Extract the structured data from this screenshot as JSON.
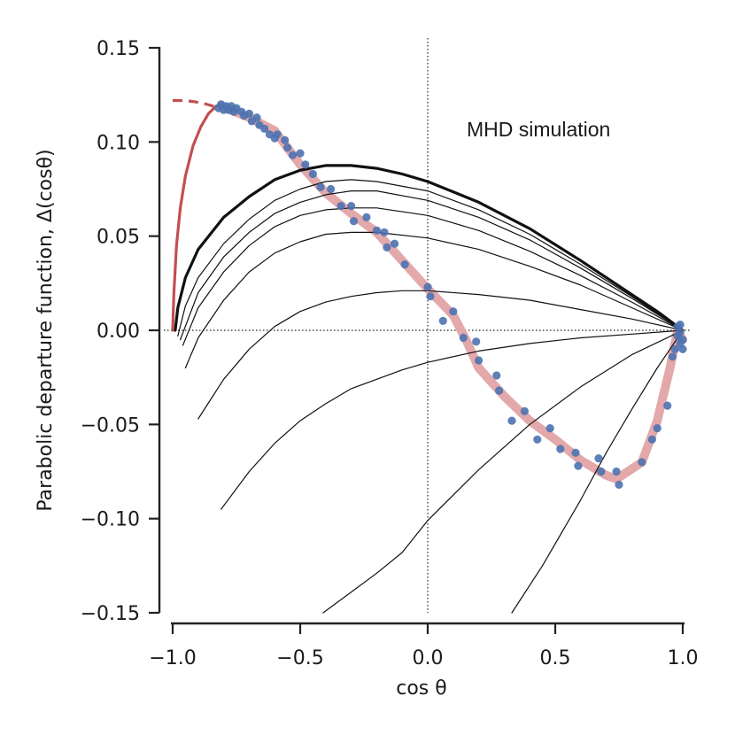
{
  "chart_data": {
    "type": "line",
    "xlabel": "cos θ",
    "ylabel": "Parabolic departure function, Δ(cosθ)",
    "xlim": [
      -1.0,
      1.0
    ],
    "ylim": [
      -0.15,
      0.15
    ],
    "xticks": [
      -1.0,
      -0.5,
      0.0,
      0.5,
      1.0
    ],
    "xtick_labels": [
      "−1.0",
      "−0.5",
      "0.0",
      "0.5",
      "1.0"
    ],
    "yticks": [
      -0.15,
      -0.1,
      -0.05,
      0.0,
      0.05,
      0.1,
      0.15
    ],
    "ytick_labels": [
      "−0.15",
      "−0.10",
      "−0.05",
      "0.00",
      "0.05",
      "0.10",
      "0.15"
    ],
    "annotation": "MHD simulation",
    "colors": {
      "model_curve": "#c44e52",
      "sim_band": "#e3a8aa",
      "sim_points": "#4c72b0",
      "family": "#111111"
    },
    "series": [
      {
        "name": "family-curve-thick",
        "style": "thick",
        "points": [
          [
            -0.99,
            0.0
          ],
          [
            -0.98,
            0.012
          ],
          [
            -0.95,
            0.028
          ],
          [
            -0.9,
            0.043
          ],
          [
            -0.8,
            0.06
          ],
          [
            -0.7,
            0.071
          ],
          [
            -0.6,
            0.08
          ],
          [
            -0.5,
            0.085
          ],
          [
            -0.4,
            0.0875
          ],
          [
            -0.3,
            0.0875
          ],
          [
            -0.2,
            0.086
          ],
          [
            -0.1,
            0.083
          ],
          [
            0.0,
            0.079
          ],
          [
            0.2,
            0.068
          ],
          [
            0.4,
            0.054
          ],
          [
            0.6,
            0.037
          ],
          [
            0.8,
            0.019
          ],
          [
            0.9,
            0.01
          ],
          [
            1.0,
            0.0
          ]
        ]
      },
      {
        "name": "family-curve-2",
        "points": [
          [
            -0.98,
            -0.003
          ],
          [
            -0.95,
            0.013
          ],
          [
            -0.9,
            0.028
          ],
          [
            -0.8,
            0.046
          ],
          [
            -0.7,
            0.059
          ],
          [
            -0.6,
            0.069
          ],
          [
            -0.5,
            0.075
          ],
          [
            -0.4,
            0.079
          ],
          [
            -0.3,
            0.08
          ],
          [
            -0.2,
            0.079
          ],
          [
            0.0,
            0.074
          ],
          [
            0.2,
            0.064
          ],
          [
            0.4,
            0.051
          ],
          [
            0.6,
            0.035
          ],
          [
            0.8,
            0.018
          ],
          [
            1.0,
            0.0
          ]
        ]
      },
      {
        "name": "family-curve-3",
        "points": [
          [
            -0.97,
            -0.005
          ],
          [
            -0.9,
            0.02
          ],
          [
            -0.8,
            0.039
          ],
          [
            -0.7,
            0.052
          ],
          [
            -0.6,
            0.062
          ],
          [
            -0.5,
            0.068
          ],
          [
            -0.4,
            0.072
          ],
          [
            -0.3,
            0.074
          ],
          [
            -0.2,
            0.074
          ],
          [
            0.0,
            0.069
          ],
          [
            0.2,
            0.06
          ],
          [
            0.4,
            0.048
          ],
          [
            0.6,
            0.033
          ],
          [
            0.8,
            0.017
          ],
          [
            1.0,
            0.0
          ]
        ]
      },
      {
        "name": "family-curve-4",
        "points": [
          [
            -0.96,
            -0.008
          ],
          [
            -0.9,
            0.012
          ],
          [
            -0.8,
            0.031
          ],
          [
            -0.7,
            0.045
          ],
          [
            -0.6,
            0.055
          ],
          [
            -0.5,
            0.061
          ],
          [
            -0.4,
            0.064
          ],
          [
            -0.3,
            0.065
          ],
          [
            -0.2,
            0.065
          ],
          [
            0.0,
            0.061
          ],
          [
            0.2,
            0.053
          ],
          [
            0.4,
            0.042
          ],
          [
            0.6,
            0.029
          ],
          [
            0.8,
            0.015
          ],
          [
            1.0,
            0.0
          ]
        ]
      },
      {
        "name": "family-curve-5",
        "points": [
          [
            -0.95,
            -0.02
          ],
          [
            -0.9,
            -0.004
          ],
          [
            -0.8,
            0.016
          ],
          [
            -0.7,
            0.031
          ],
          [
            -0.6,
            0.041
          ],
          [
            -0.5,
            0.047
          ],
          [
            -0.4,
            0.051
          ],
          [
            -0.3,
            0.052
          ],
          [
            -0.2,
            0.052
          ],
          [
            0.0,
            0.049
          ],
          [
            0.2,
            0.043
          ],
          [
            0.4,
            0.034
          ],
          [
            0.6,
            0.024
          ],
          [
            0.8,
            0.012
          ],
          [
            1.0,
            0.0
          ]
        ]
      },
      {
        "name": "family-curve-6",
        "points": [
          [
            -0.9,
            -0.047
          ],
          [
            -0.8,
            -0.026
          ],
          [
            -0.7,
            -0.01
          ],
          [
            -0.6,
            0.002
          ],
          [
            -0.5,
            0.01
          ],
          [
            -0.4,
            0.015
          ],
          [
            -0.3,
            0.018
          ],
          [
            -0.2,
            0.02
          ],
          [
            -0.1,
            0.021
          ],
          [
            0.0,
            0.021
          ],
          [
            0.2,
            0.019
          ],
          [
            0.4,
            0.016
          ],
          [
            0.6,
            0.011
          ],
          [
            0.8,
            0.006
          ],
          [
            1.0,
            0.0
          ]
        ]
      },
      {
        "name": "family-curve-7",
        "points": [
          [
            -0.81,
            -0.095
          ],
          [
            -0.7,
            -0.075
          ],
          [
            -0.6,
            -0.06
          ],
          [
            -0.5,
            -0.048
          ],
          [
            -0.4,
            -0.039
          ],
          [
            -0.3,
            -0.031
          ],
          [
            -0.2,
            -0.026
          ],
          [
            -0.1,
            -0.021
          ],
          [
            0.0,
            -0.017
          ],
          [
            0.2,
            -0.011
          ],
          [
            0.4,
            -0.007
          ],
          [
            0.6,
            -0.004
          ],
          [
            0.8,
            -0.002
          ],
          [
            1.0,
            0.0
          ]
        ]
      },
      {
        "name": "family-curve-8",
        "points": [
          [
            -0.41,
            -0.15
          ],
          [
            -0.3,
            -0.139
          ],
          [
            -0.2,
            -0.129
          ],
          [
            -0.1,
            -0.118
          ],
          [
            0.0,
            -0.101
          ],
          [
            0.2,
            -0.074
          ],
          [
            0.4,
            -0.05
          ],
          [
            0.6,
            -0.03
          ],
          [
            0.8,
            -0.013
          ],
          [
            1.0,
            0.0
          ]
        ]
      },
      {
        "name": "family-curve-9",
        "points": [
          [
            0.33,
            -0.15
          ],
          [
            0.45,
            -0.125
          ],
          [
            0.6,
            -0.09
          ],
          [
            0.7,
            -0.065
          ],
          [
            0.8,
            -0.042
          ],
          [
            0.9,
            -0.02
          ],
          [
            1.0,
            0.0
          ]
        ]
      },
      {
        "name": "model-solid",
        "style": "red-solid",
        "points": [
          [
            -1.0,
            0.0
          ],
          [
            -0.995,
            0.02
          ],
          [
            -0.985,
            0.045
          ],
          [
            -0.97,
            0.065
          ],
          [
            -0.95,
            0.082
          ],
          [
            -0.92,
            0.098
          ],
          [
            -0.89,
            0.108
          ],
          [
            -0.86,
            0.115
          ],
          [
            -0.83,
            0.119
          ],
          [
            -0.81,
            0.12
          ]
        ]
      },
      {
        "name": "model-dashed",
        "style": "red-dashed",
        "points": [
          [
            -1.0,
            0.122
          ],
          [
            -0.96,
            0.122
          ],
          [
            -0.92,
            0.1215
          ],
          [
            -0.88,
            0.1205
          ],
          [
            -0.84,
            0.119
          ],
          [
            -0.81,
            0.118
          ]
        ]
      },
      {
        "name": "simulation-band",
        "style": "band",
        "points": [
          [
            -0.81,
            0.119
          ],
          [
            -0.7,
            0.113
          ],
          [
            -0.6,
            0.106
          ],
          [
            -0.5,
            0.088
          ],
          [
            -0.4,
            0.073
          ],
          [
            -0.3,
            0.062
          ],
          [
            -0.2,
            0.052
          ],
          [
            -0.1,
            0.037
          ],
          [
            0.0,
            0.022
          ],
          [
            0.1,
            0.008
          ],
          [
            0.15,
            -0.005
          ],
          [
            0.2,
            -0.02
          ],
          [
            0.3,
            -0.035
          ],
          [
            0.4,
            -0.048
          ],
          [
            0.5,
            -0.058
          ],
          [
            0.6,
            -0.069
          ],
          [
            0.7,
            -0.077
          ],
          [
            0.74,
            -0.079
          ],
          [
            0.84,
            -0.07
          ],
          [
            0.9,
            -0.048
          ],
          [
            0.95,
            -0.02
          ],
          [
            0.98,
            0.0
          ],
          [
            1.0,
            -0.005
          ]
        ]
      },
      {
        "name": "simulation-points",
        "style": "scatter",
        "points": [
          [
            -0.82,
            0.118
          ],
          [
            -0.81,
            0.12
          ],
          [
            -0.8,
            0.117
          ],
          [
            -0.79,
            0.119
          ],
          [
            -0.78,
            0.117
          ],
          [
            -0.77,
            0.119
          ],
          [
            -0.76,
            0.116
          ],
          [
            -0.75,
            0.118
          ],
          [
            -0.73,
            0.116
          ],
          [
            -0.72,
            0.114
          ],
          [
            -0.7,
            0.115
          ],
          [
            -0.69,
            0.111
          ],
          [
            -0.67,
            0.113
          ],
          [
            -0.66,
            0.109
          ],
          [
            -0.64,
            0.107
          ],
          [
            -0.62,
            0.104
          ],
          [
            -0.6,
            0.102
          ],
          [
            -0.59,
            0.104
          ],
          [
            -0.56,
            0.101
          ],
          [
            -0.55,
            0.097
          ],
          [
            -0.53,
            0.093
          ],
          [
            -0.5,
            0.094
          ],
          [
            -0.48,
            0.088
          ],
          [
            -0.45,
            0.083
          ],
          [
            -0.42,
            0.076
          ],
          [
            -0.38,
            0.075
          ],
          [
            -0.34,
            0.066
          ],
          [
            -0.3,
            0.066
          ],
          [
            -0.29,
            0.058
          ],
          [
            -0.24,
            0.06
          ],
          [
            -0.2,
            0.053
          ],
          [
            -0.17,
            0.052
          ],
          [
            -0.16,
            0.044
          ],
          [
            -0.13,
            0.046
          ],
          [
            -0.09,
            0.035
          ],
          [
            0.0,
            0.023
          ],
          [
            0.01,
            0.018
          ],
          [
            0.06,
            0.005
          ],
          [
            0.1,
            0.01
          ],
          [
            0.14,
            -0.004
          ],
          [
            0.19,
            -0.006
          ],
          [
            0.2,
            -0.016
          ],
          [
            0.27,
            -0.024
          ],
          [
            0.28,
            -0.032
          ],
          [
            0.33,
            -0.048
          ],
          [
            0.38,
            -0.043
          ],
          [
            0.43,
            -0.058
          ],
          [
            0.48,
            -0.052
          ],
          [
            0.52,
            -0.063
          ],
          [
            0.58,
            -0.065
          ],
          [
            0.59,
            -0.072
          ],
          [
            0.67,
            -0.068
          ],
          [
            0.68,
            -0.075
          ],
          [
            0.74,
            -0.075
          ],
          [
            0.75,
            -0.082
          ],
          [
            0.84,
            -0.07
          ],
          [
            0.88,
            -0.058
          ],
          [
            0.9,
            -0.052
          ],
          [
            0.94,
            -0.04
          ],
          [
            0.96,
            -0.014
          ],
          [
            0.97,
            -0.01
          ],
          [
            0.98,
            0.002
          ],
          [
            0.98,
            -0.003
          ],
          [
            0.99,
            -0.001
          ],
          [
            0.99,
            0.003
          ],
          [
            0.99,
            -0.007
          ],
          [
            1.0,
            -0.005
          ],
          [
            1.0,
            -0.01
          ]
        ]
      }
    ]
  }
}
